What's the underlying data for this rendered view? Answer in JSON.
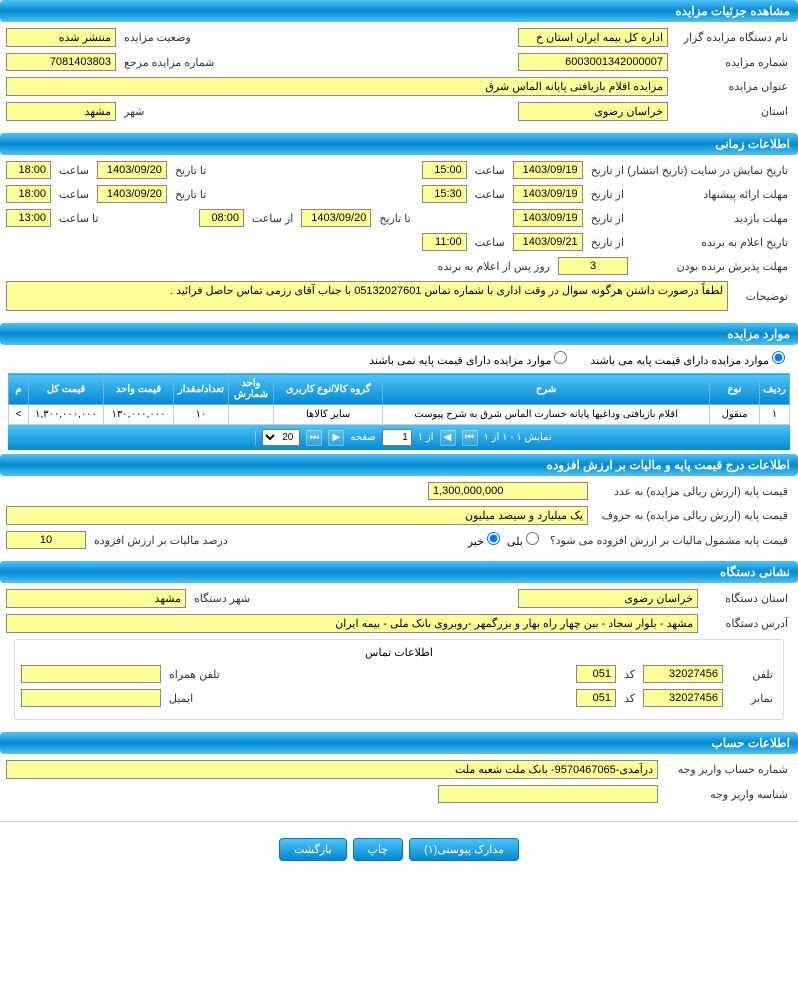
{
  "sections": {
    "details": "مشاهده جزئیات مزایده",
    "time": "اطلاعات زمانی",
    "items": "موارد مزایده",
    "price": "اطلاعات درج قیمت پایه و مالیات بر ارزش افزوده",
    "org": "نشانی دستگاه",
    "account": "اطلاعات حساب"
  },
  "details": {
    "org_name_label": "نام دستگاه مزایده گزار",
    "org_name": "اداره کل بیمه ایران استان خ",
    "status_label": "وضعیت مزایده",
    "status": "منتشر شده",
    "auction_no_label": "شماره مزایده",
    "auction_no": "6003001342000007",
    "ref_no_label": "شماره مزایده مرجع",
    "ref_no": "7081403803",
    "title_label": "عنوان مزایده",
    "title": "مزایده اقلام بازیافتی پایانه الماس شرق",
    "province_label": "استان",
    "province": "خراسان رضوی",
    "city_label": "شهر",
    "city": "مشهد"
  },
  "time": {
    "publish_label": "تاریخ نمایش در سایت (تاریخ انتشار)",
    "from_label": "از تاریخ",
    "to_label": "تا تاریخ",
    "hour_label": "ساعت",
    "to_hour_label": "تا ساعت",
    "from_hour_label": "از ساعت",
    "publish_from": "1403/09/19",
    "publish_hour_from": "15:00",
    "publish_to": "1403/09/20",
    "publish_hour_to": "18:00",
    "offer_label": "مهلت ارائه پیشنهاد",
    "offer_from": "1403/09/19",
    "offer_hour_from": "15:30",
    "offer_to": "1403/09/20",
    "offer_hour_to": "18:00",
    "visit_label": "مهلت بازدید",
    "visit_from": "1403/09/19",
    "visit_to": "1403/09/20",
    "visit_hour_from": "08:00",
    "visit_hour_to": "13:00",
    "winner_label": "تاریخ اعلام به برنده",
    "winner_from": "1403/09/21",
    "winner_hour": "11:00",
    "accept_label": "مهلت پذیرش برنده بودن",
    "accept_days": "3",
    "accept_suffix": "روز پس از اعلام به برنده",
    "desc_label": "توضیحات",
    "desc": "لطفاً درصورت داشتن هرگونه سوال در وقت اداری با شماره تماس 05132027601 با جناب آقای رزمی تماس حاصل فرائید ."
  },
  "items": {
    "radio_has_base": "موارد مزایده دارای قیمت پایه می باشند",
    "radio_no_base": "موارد مزایده دارای قیمت پایه نمی باشند",
    "columns": [
      "ردیف",
      "نوع",
      "شرح",
      "گروه کالا/نوع کاربری",
      "واحد شمارش",
      "تعداد/مقدار",
      "قیمت واحد",
      "قیمت کل",
      "م"
    ],
    "rows": [
      [
        "۱",
        "منقول",
        "اقلام بازیافتی وداغیها پایانه خسارت الماس شرق به شرح پیوست",
        "سایر کالاها",
        "",
        "۱۰",
        "۱۳۰,۰۰۰,۰۰۰",
        "۱,۳۰۰,۰۰۰,۰۰۰",
        ">"
      ]
    ],
    "pager": {
      "display": "نمایش ۱ - ۱ از ۱",
      "of": "از ۱",
      "page_label": "صفحه",
      "page_val": "1",
      "size": "20"
    }
  },
  "price": {
    "base_num_label": "قیمت پایه (ارزش ریالی مزایده) به عدد",
    "base_num": "1,300,000,000",
    "base_words_label": "قیمت پایه (ارزش ریالی مزایده) به حروف",
    "base_words": "یک میلیارد و سیصد میلیون",
    "vat_q": "قیمت پایه مشمول مالیات بر ارزش افزوده می شود؟",
    "yes": "بلی",
    "no": "خیر",
    "vat_pct_label": "درصد مالیات بر ارزش افزوده",
    "vat_pct": "10"
  },
  "org": {
    "province_label": "استان دستگاه",
    "province": "خراسان رضوی",
    "city_label": "شهر دستگاه",
    "city": "مشهد",
    "addr_label": "آدرس دستگاه",
    "addr": "مشهد - بلوار سجاد - بین چهار راه بهار و بزرگمهر -روبروی بانک ملی - بیمه ایران",
    "contact_header": "اطلاعات تماس",
    "phone_label": "تلفن",
    "phone": "32027456",
    "code_label": "کد",
    "code": "051",
    "mobile_label": "تلفن همراه",
    "mobile": "",
    "fax_label": "نمابر",
    "fax": "32027456",
    "fax_code": "051",
    "email_label": "ایمیل",
    "email": ""
  },
  "account": {
    "acc_label": "شماره حساب واریز وجه",
    "acc": "درآمدی-9570467065- بانک ملت شعبه ملت",
    "id_label": "شناسه واریز وجه",
    "id": ""
  },
  "buttons": {
    "attachments": "مدارک پیوستی(۱)",
    "print": "چاپ",
    "back": "بازگشت"
  }
}
